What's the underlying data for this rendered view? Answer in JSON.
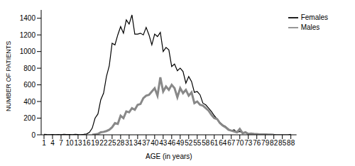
{
  "chart_data": {
    "type": "line",
    "x_label": "AGE (in years)",
    "y_label": "NUMBER OF PATIENTS",
    "x": [
      1,
      2,
      3,
      4,
      5,
      6,
      7,
      8,
      9,
      10,
      11,
      12,
      13,
      14,
      15,
      16,
      17,
      18,
      19,
      20,
      21,
      22,
      23,
      24,
      25,
      26,
      27,
      28,
      29,
      30,
      31,
      32,
      33,
      34,
      35,
      36,
      37,
      38,
      39,
      40,
      41,
      42,
      43,
      44,
      45,
      46,
      47,
      48,
      49,
      50,
      51,
      52,
      53,
      54,
      55,
      56,
      57,
      58,
      59,
      60,
      61,
      62,
      63,
      64,
      65,
      66,
      67,
      68,
      69,
      70,
      71,
      72,
      73,
      74,
      75,
      76,
      77,
      78,
      79,
      80,
      81,
      82,
      83,
      84,
      85,
      86,
      87,
      88
    ],
    "series": [
      {
        "name": "Females",
        "color": "#000000",
        "line_style": "solid",
        "values": [
          5,
          3,
          2,
          3,
          2,
          3,
          2,
          5,
          3,
          4,
          2,
          5,
          3,
          2,
          5,
          10,
          30,
          80,
          200,
          250,
          420,
          500,
          700,
          830,
          1100,
          1080,
          1200,
          1300,
          1220,
          1380,
          1330,
          1440,
          1210,
          1210,
          1220,
          1200,
          1290,
          1200,
          1080,
          1210,
          1180,
          1230,
          1000,
          1050,
          1020,
          820,
          850,
          770,
          800,
          760,
          620,
          700,
          640,
          510,
          520,
          480,
          380,
          360,
          320,
          280,
          230,
          190,
          150,
          120,
          100,
          70,
          50,
          60,
          30,
          40,
          20,
          30,
          15,
          10,
          10,
          10,
          5,
          5,
          5,
          3,
          2,
          2,
          0,
          0,
          0,
          0,
          0,
          5
        ]
      },
      {
        "name": "Males",
        "color": "#888888",
        "line_style": "solid",
        "values": [
          null,
          null,
          null,
          null,
          null,
          null,
          null,
          null,
          null,
          null,
          null,
          null,
          null,
          null,
          null,
          null,
          null,
          0,
          5,
          10,
          30,
          35,
          45,
          60,
          90,
          140,
          130,
          230,
          200,
          280,
          270,
          320,
          300,
          360,
          370,
          440,
          470,
          480,
          520,
          560,
          470,
          690,
          520,
          580,
          540,
          600,
          560,
          450,
          560,
          500,
          540,
          470,
          510,
          380,
          400,
          360,
          350,
          320,
          290,
          240,
          200,
          190,
          140,
          110,
          90,
          60,
          50,
          40,
          30,
          70,
          20,
          30,
          10,
          15,
          10,
          8,
          5,
          5,
          5,
          3,
          2,
          0,
          null,
          null,
          null,
          null,
          null,
          null
        ]
      }
    ],
    "xlim": [
      0,
      90
    ],
    "xticks": [
      1,
      4,
      7,
      10,
      13,
      16,
      19,
      22,
      25,
      28,
      31,
      34,
      37,
      40,
      43,
      46,
      49,
      52,
      55,
      58,
      61,
      64,
      67,
      70,
      73,
      76,
      79,
      82,
      85,
      88
    ],
    "ylim": [
      0,
      1500
    ],
    "yticks": [
      0,
      200,
      400,
      600,
      800,
      1000,
      1200,
      1400
    ],
    "grid": false,
    "legend": "upper right"
  }
}
